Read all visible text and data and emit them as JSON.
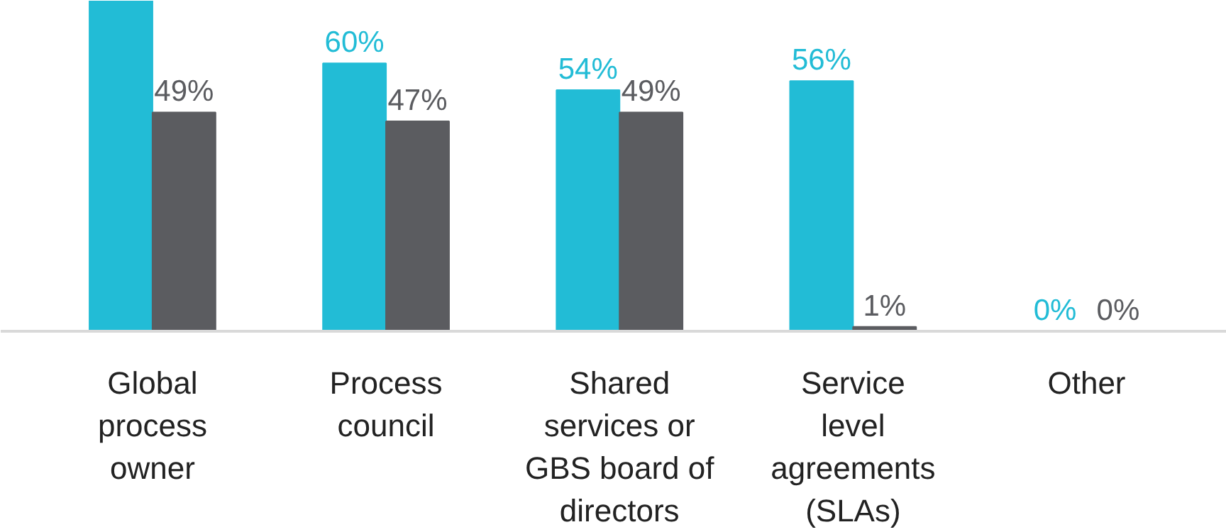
{
  "chart_data": {
    "type": "bar",
    "categories": [
      "Global process owner",
      "Process council",
      "Shared services or GBS board of directors",
      "Service level agreements (SLAs)",
      "Other"
    ],
    "series": [
      {
        "color": "#22bcd6",
        "values": [
          74,
          60,
          54,
          56,
          0
        ],
        "value_labels": [
          null,
          "60%",
          "54%",
          "56%",
          "0%"
        ]
      },
      {
        "color": "#5b5c60",
        "values": [
          49,
          47,
          49,
          1,
          0
        ],
        "value_labels": [
          "49%",
          "47%",
          "49%",
          "1%",
          "0%"
        ]
      }
    ],
    "grid": false
  }
}
